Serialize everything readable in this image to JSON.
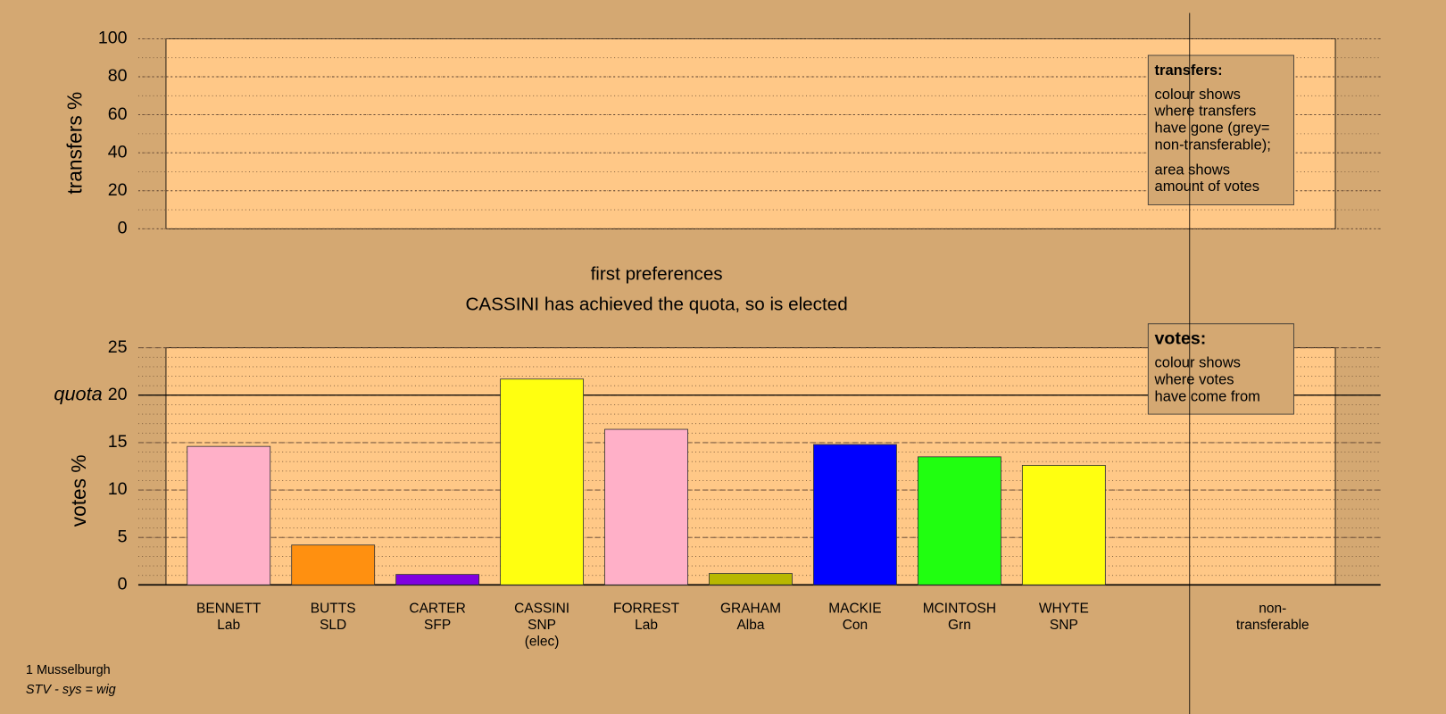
{
  "chart_data": [
    {
      "type": "bar",
      "ylabel": "transfers %",
      "ylim": [
        0,
        100
      ],
      "yticks": [
        0,
        20,
        40,
        60,
        80,
        100
      ],
      "minor_ytick_step": 10,
      "legend": {
        "title": "transfers:",
        "paragraphs": [
          [
            "colour shows",
            "where transfers",
            "have gone (grey=",
            "non-transferable);"
          ],
          [
            "area shows",
            "amount of votes"
          ]
        ]
      }
    },
    {
      "type": "bar",
      "title": "first preferences",
      "subtitle": "CASSINI has achieved the quota, so is elected",
      "ylabel": "votes %",
      "categories": [
        [
          "BENNETT",
          "Lab"
        ],
        [
          "BUTTS",
          "SLD"
        ],
        [
          "CARTER",
          "SFP"
        ],
        [
          "CASSINI",
          "SNP",
          "(elec)"
        ],
        [
          "FORREST",
          "Lab"
        ],
        [
          "GRAHAM",
          "Alba"
        ],
        [
          "MACKIE",
          "Con"
        ],
        [
          "MCINTOSH",
          "Grn"
        ],
        [
          "WHYTE",
          "SNP"
        ],
        [
          "non-",
          "transferable"
        ]
      ],
      "values": [
        14.6,
        4.2,
        1.1,
        21.7,
        16.4,
        1.2,
        14.8,
        13.5,
        12.6,
        null
      ],
      "colors": [
        "#ffb0c8",
        "#ff9010",
        "#8000e0",
        "#ffff10",
        "#ffb0c8",
        "#b8b800",
        "#0000ff",
        "#20ff10",
        "#ffff10",
        null
      ],
      "ylim": [
        0,
        25
      ],
      "yticks": [
        0,
        5,
        10,
        15,
        20,
        25
      ],
      "minor_ytick_step": 1,
      "quota": {
        "label": "quota",
        "value": 20
      },
      "legend": {
        "title": "votes:",
        "paragraphs": [
          [
            "colour shows",
            "where votes",
            "have come from"
          ]
        ]
      }
    }
  ],
  "footer": [
    "1 Musselburgh",
    "STV - sys = wig"
  ]
}
